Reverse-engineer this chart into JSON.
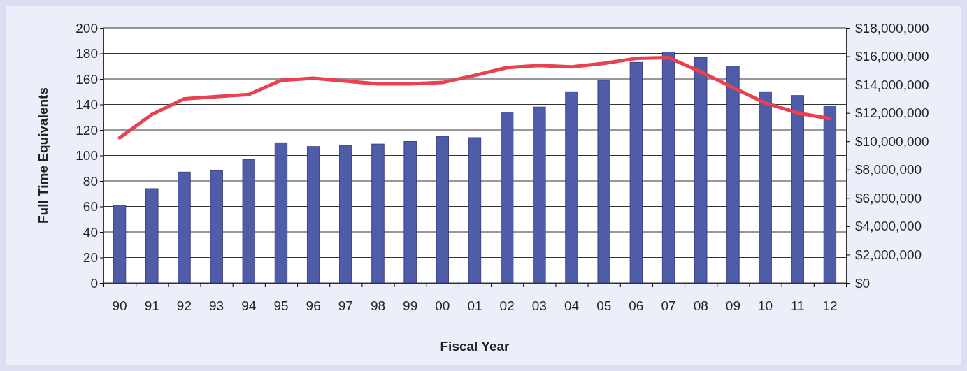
{
  "chart_data": {
    "type": "bar",
    "xlabel": "Fiscal Year",
    "ylabel": "Full Time Equivalents",
    "categories": [
      "90",
      "91",
      "92",
      "93",
      "94",
      "95",
      "96",
      "97",
      "98",
      "99",
      "00",
      "01",
      "02",
      "03",
      "04",
      "05",
      "06",
      "07",
      "08",
      "09",
      "10",
      "11",
      "12"
    ],
    "series": [
      {
        "color": "#4f5ca8",
        "values": [
          61,
          74,
          87,
          88,
          97,
          110,
          107,
          108,
          109,
          111,
          115,
          114,
          134,
          138,
          150,
          159,
          173,
          181,
          177,
          170,
          150,
          147,
          139
        ]
      },
      {
        "type": "line",
        "axis": "y2",
        "color": "#e8424f",
        "values": [
          10250000,
          11900000,
          13000000,
          13150000,
          13300000,
          14300000,
          14450000,
          14250000,
          14050000,
          14050000,
          14150000,
          14650000,
          15200000,
          15350000,
          15250000,
          15500000,
          15850000,
          15900000,
          14900000,
          13800000,
          12700000,
          12000000,
          11600000
        ]
      }
    ],
    "ylim": [
      0,
      200
    ],
    "yticks": [
      0,
      20,
      40,
      60,
      80,
      100,
      120,
      140,
      160,
      180,
      200
    ],
    "y2lim": [
      0,
      18000000
    ],
    "y2ticks": [
      {
        "value": 0,
        "label": "$0"
      },
      {
        "value": 2000000,
        "label": "$2,000,000"
      },
      {
        "value": 4000000,
        "label": "$4,000,000"
      },
      {
        "value": 6000000,
        "label": "$6,000,000"
      },
      {
        "value": 8000000,
        "label": "$8,000,000"
      },
      {
        "value": 10000000,
        "label": "$10,000,000"
      },
      {
        "value": 12000000,
        "label": "$12,000,000"
      },
      {
        "value": 14000000,
        "label": "$14,000,000"
      },
      {
        "value": 16000000,
        "label": "$16,000,000"
      },
      {
        "value": 18000000,
        "label": "$18,000,000"
      }
    ],
    "grid": "y"
  }
}
